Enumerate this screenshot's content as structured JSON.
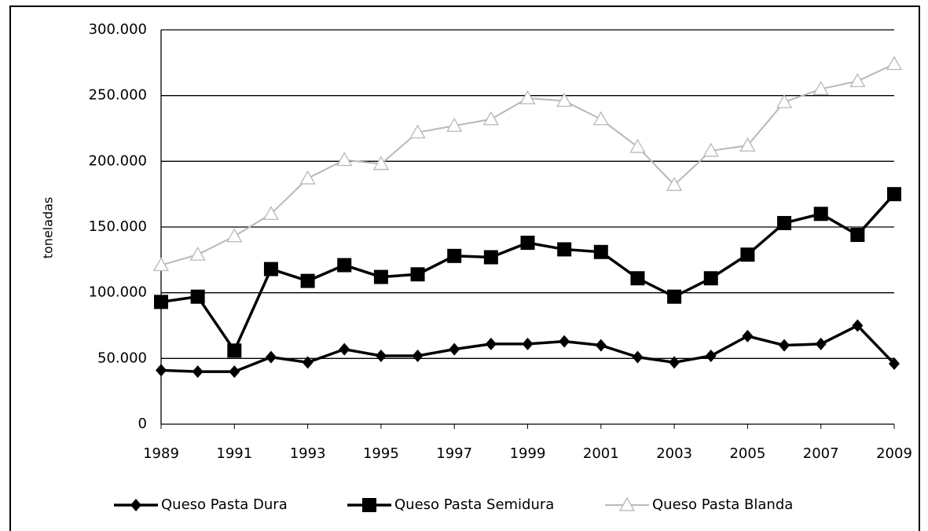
{
  "chart_data": {
    "type": "line",
    "y_label": "toneladas",
    "x": [
      1989,
      1990,
      1991,
      1992,
      1993,
      1994,
      1995,
      1996,
      1997,
      1998,
      1999,
      2000,
      2001,
      2002,
      2003,
      2004,
      2005,
      2006,
      2007,
      2008,
      2009
    ],
    "xlim": [
      1989,
      2009
    ],
    "xticks": [
      1989,
      1991,
      1993,
      1995,
      1997,
      1999,
      2001,
      2003,
      2005,
      2007,
      2009
    ],
    "ylim": [
      0,
      300000
    ],
    "yticks": [
      0,
      {
        "value": 50000,
        "label": "50.000"
      },
      {
        "value": 100000,
        "label": "100.000"
      },
      {
        "value": 150000,
        "label": "150.000"
      },
      {
        "value": 200000,
        "label": "200.000"
      },
      {
        "value": 250000,
        "label": "250.000"
      },
      {
        "value": 300000,
        "label": "300.000"
      }
    ],
    "grid": true,
    "legend": "bottom",
    "series": [
      {
        "name": "Queso Pasta Dura",
        "color": "#000000",
        "values": [
          41000,
          40000,
          40000,
          51000,
          47000,
          57000,
          52000,
          52000,
          57000,
          61000,
          61000,
          63000,
          60000,
          51000,
          47000,
          52000,
          67000,
          60000,
          61000,
          75000,
          46000
        ]
      },
      {
        "name": "Queso Pasta Semidura",
        "color": "#000000",
        "values": [
          93000,
          97000,
          56000,
          118000,
          109000,
          121000,
          112000,
          114000,
          128000,
          127000,
          138000,
          133000,
          131000,
          111000,
          97000,
          111000,
          129000,
          153000,
          160000,
          144000,
          175000
        ]
      },
      {
        "name": "Queso Pasta Blanda",
        "color": "#b8b8b8",
        "values": [
          121000,
          129000,
          143000,
          160000,
          187000,
          201000,
          198000,
          222000,
          227000,
          232000,
          248000,
          246000,
          232000,
          211000,
          182000,
          208000,
          212000,
          245000,
          255000,
          261000,
          274000
        ]
      }
    ]
  }
}
